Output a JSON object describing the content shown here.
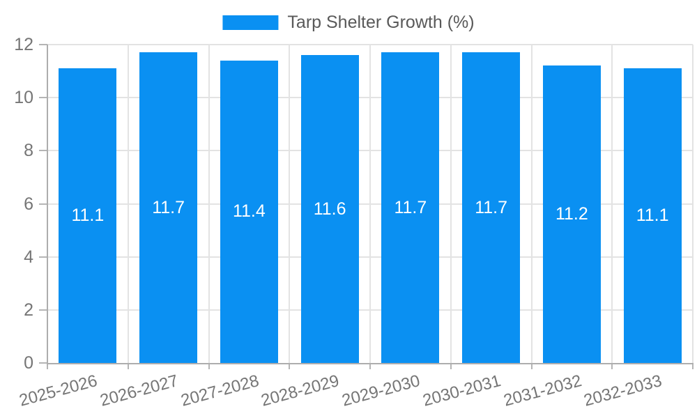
{
  "chart_data": {
    "type": "bar",
    "title": "",
    "legend": "Tarp Shelter Growth (%)",
    "legend_position": "top-center",
    "categories": [
      "2025-2026",
      "2026-2027",
      "2027-2028",
      "2028-2029",
      "2029-2030",
      "2030-2031",
      "2031-2032",
      "2032-2033"
    ],
    "values": [
      11.1,
      11.7,
      11.4,
      11.6,
      11.7,
      11.7,
      11.2,
      11.1
    ],
    "bar_labels": [
      "11.1",
      "11.7",
      "11.4",
      "11.6",
      "11.7",
      "11.7",
      "11.2",
      "11.1"
    ],
    "xlabel": "",
    "ylabel": "",
    "ylim": [
      0,
      12
    ],
    "yticks": [
      0,
      2,
      4,
      6,
      8,
      10,
      12
    ],
    "grid": true,
    "x_label_rotation_deg": -15,
    "colors": {
      "bar": "#0a90f2",
      "gridline": "#e3e3e3",
      "axis_line": "#adadad",
      "tick_mark": "#b5b5b5",
      "tick_label_text": "#757575",
      "legend_text": "#595959",
      "bar_label_text": "#ffffff",
      "background": "#ffffff"
    }
  }
}
